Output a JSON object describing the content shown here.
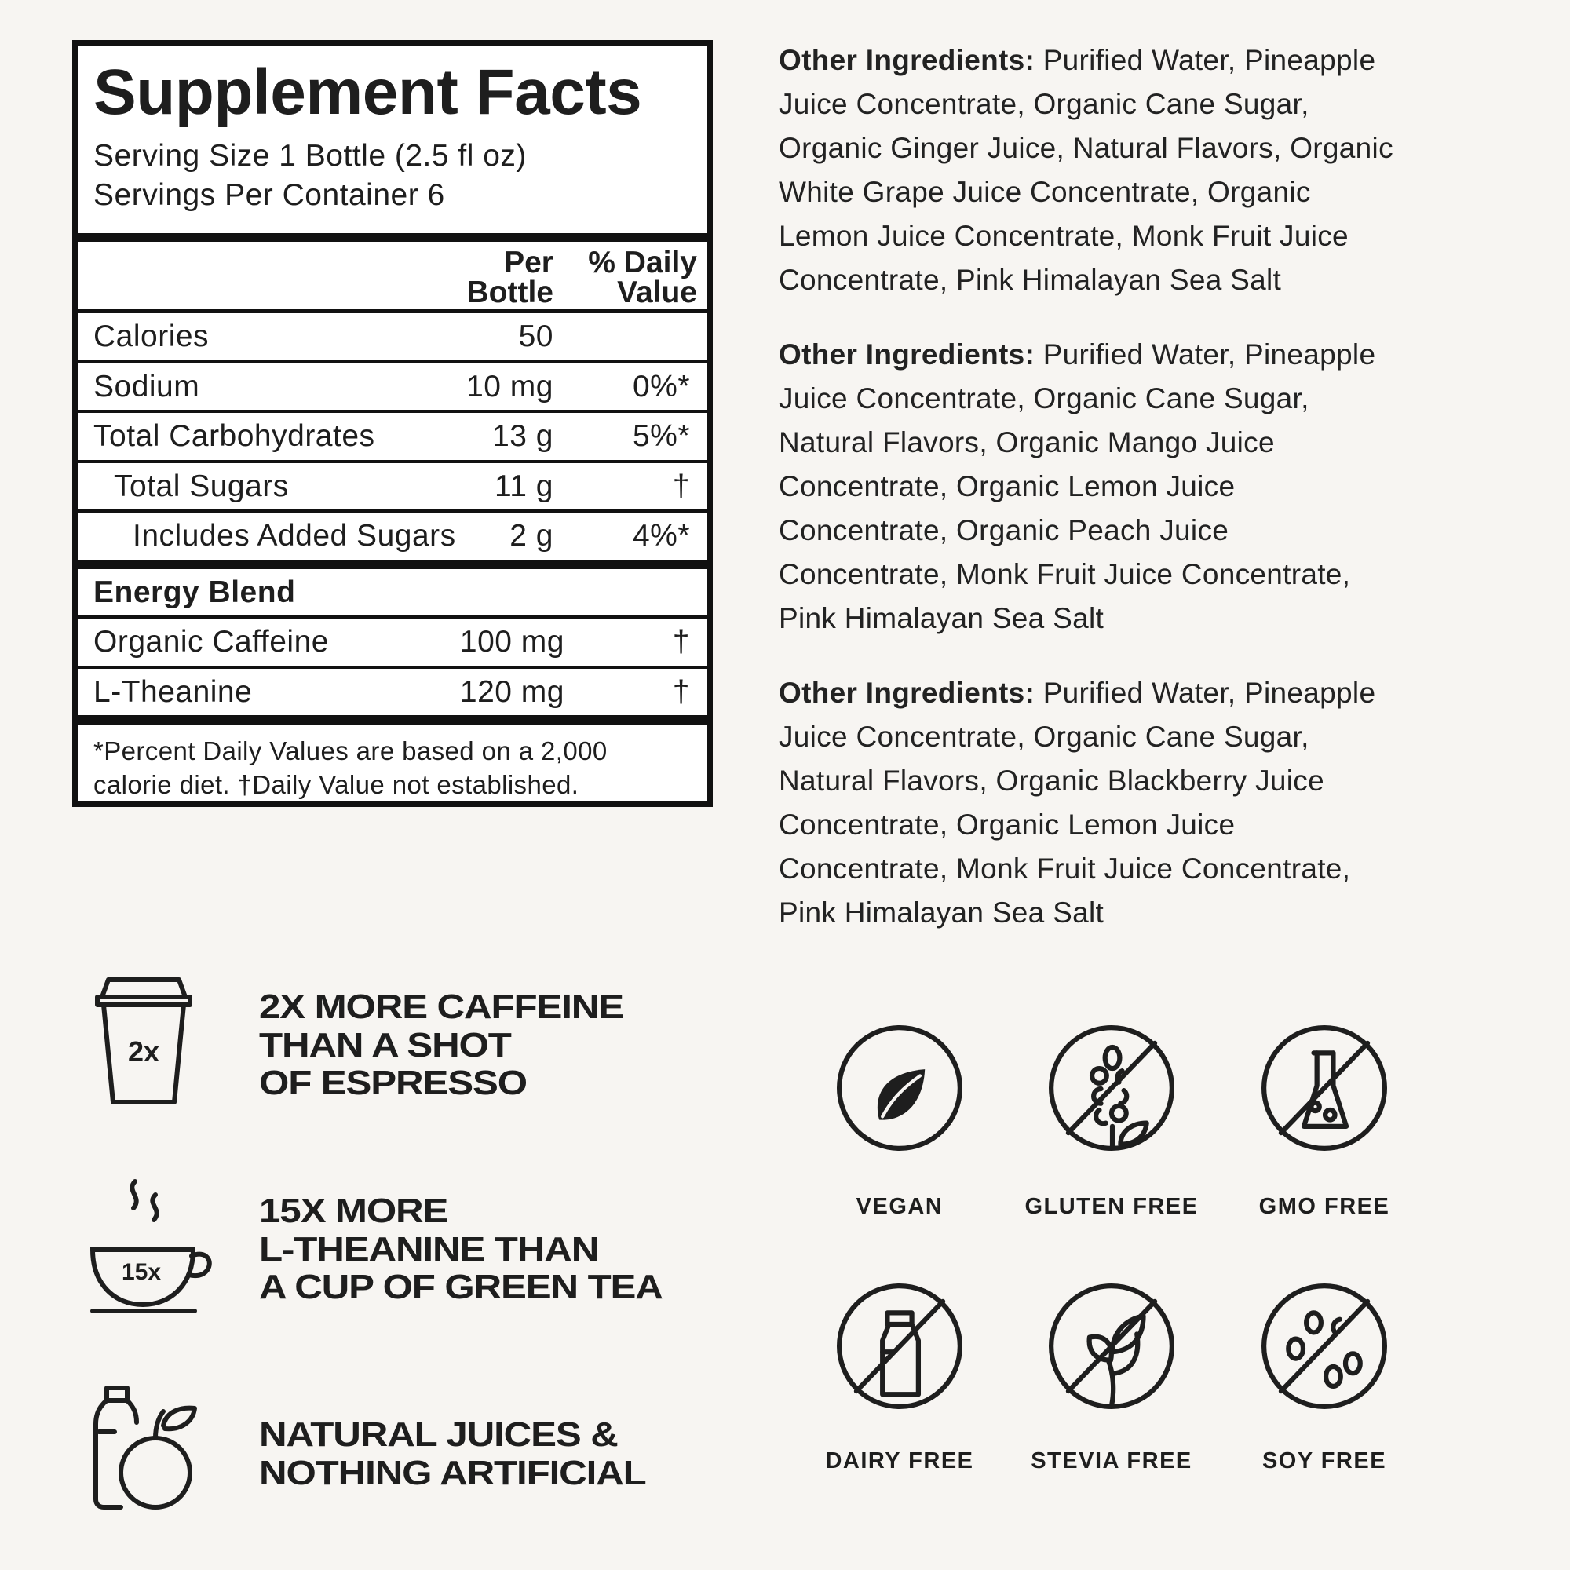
{
  "label": {
    "title": "Supplement Facts",
    "serving_size": "Serving Size 1 Bottle (2.5 fl oz)",
    "servings_per_container": "Servings Per Container 6",
    "col_per": [
      "Per",
      "Bottle"
    ],
    "col_dv": [
      "% Daily",
      "Value"
    ],
    "rows": [
      {
        "name": "Calories",
        "amount": "50",
        "dv": ""
      },
      {
        "name": "Sodium",
        "amount": "10 mg",
        "dv": "0%*"
      },
      {
        "name": "Total Carbohydrates",
        "amount": "13 g",
        "dv": "5%*"
      },
      {
        "name": "Total Sugars",
        "amount": "11 g",
        "dv": "†"
      },
      {
        "name": "Includes Added Sugars",
        "amount": "2 g",
        "dv": "4%*"
      }
    ],
    "blend_title": "Energy Blend",
    "blend": [
      {
        "name": "Organic Caffeine",
        "amount": "100 mg",
        "dv": "†"
      },
      {
        "name": "L-Theanine",
        "amount": "120 mg",
        "dv": "†"
      }
    ],
    "footnote": [
      "*Percent Daily Values are based on a 2,000",
      "calorie diet. †Daily Value not established."
    ]
  },
  "ingredients": [
    {
      "label": "Other Ingredients:",
      "lines": [
        " Purified Water, Pineapple",
        "Juice Concentrate, Organic Cane Sugar,",
        "Organic Ginger Juice, Natural Flavors, Organic",
        "White Grape Juice Concentrate, Organic",
        "Lemon Juice Concentrate, Monk Fruit Juice",
        "Concentrate, Pink Himalayan Sea Salt"
      ]
    },
    {
      "label": "Other Ingredients:",
      "lines": [
        " Purified Water, Pineapple",
        "Juice Concentrate, Organic Cane Sugar,",
        "Natural Flavors, Organic Mango Juice",
        "Concentrate, Organic Lemon Juice",
        "Concentrate, Organic Peach Juice",
        "Concentrate, Monk Fruit Juice Concentrate,",
        "Pink Himalayan Sea Salt"
      ]
    },
    {
      "label": "Other Ingredients:",
      "lines": [
        " Purified Water, Pineapple",
        "Juice Concentrate, Organic Cane Sugar,",
        "Natural Flavors, Organic Blackberry Juice",
        "Concentrate, Organic Lemon Juice",
        "Concentrate, Monk Fruit Juice Concentrate,",
        "Pink Himalayan Sea Salt"
      ]
    }
  ],
  "claims": [
    {
      "icon": "coffee-cup-icon",
      "icon_text": "2x",
      "lines": [
        "2X MORE CAFFEINE",
        "THAN A SHOT",
        "OF ESPRESSO"
      ]
    },
    {
      "icon": "tea-cup-icon",
      "icon_text": "15x",
      "lines": [
        "15X MORE",
        "L-THEANINE THAN",
        "A CUP OF GREEN TEA"
      ]
    },
    {
      "icon": "bottle-fruit-icon",
      "lines": [
        "NATURAL JUICES &",
        "NOTHING ARTIFICIAL"
      ]
    }
  ],
  "badges": [
    {
      "icon": "leaf-icon",
      "label": "VEGAN"
    },
    {
      "icon": "no-wheat-icon",
      "label": "GLUTEN FREE"
    },
    {
      "icon": "no-flask-icon",
      "label": "GMO FREE"
    },
    {
      "icon": "no-milk-icon",
      "label": "DAIRY FREE"
    },
    {
      "icon": "no-stevia-icon",
      "label": "STEVIA FREE"
    },
    {
      "icon": "no-soy-icon",
      "label": "SOY FREE"
    }
  ],
  "colors": {
    "background": "#f7f5f2",
    "ink": "#1e1e1e"
  }
}
